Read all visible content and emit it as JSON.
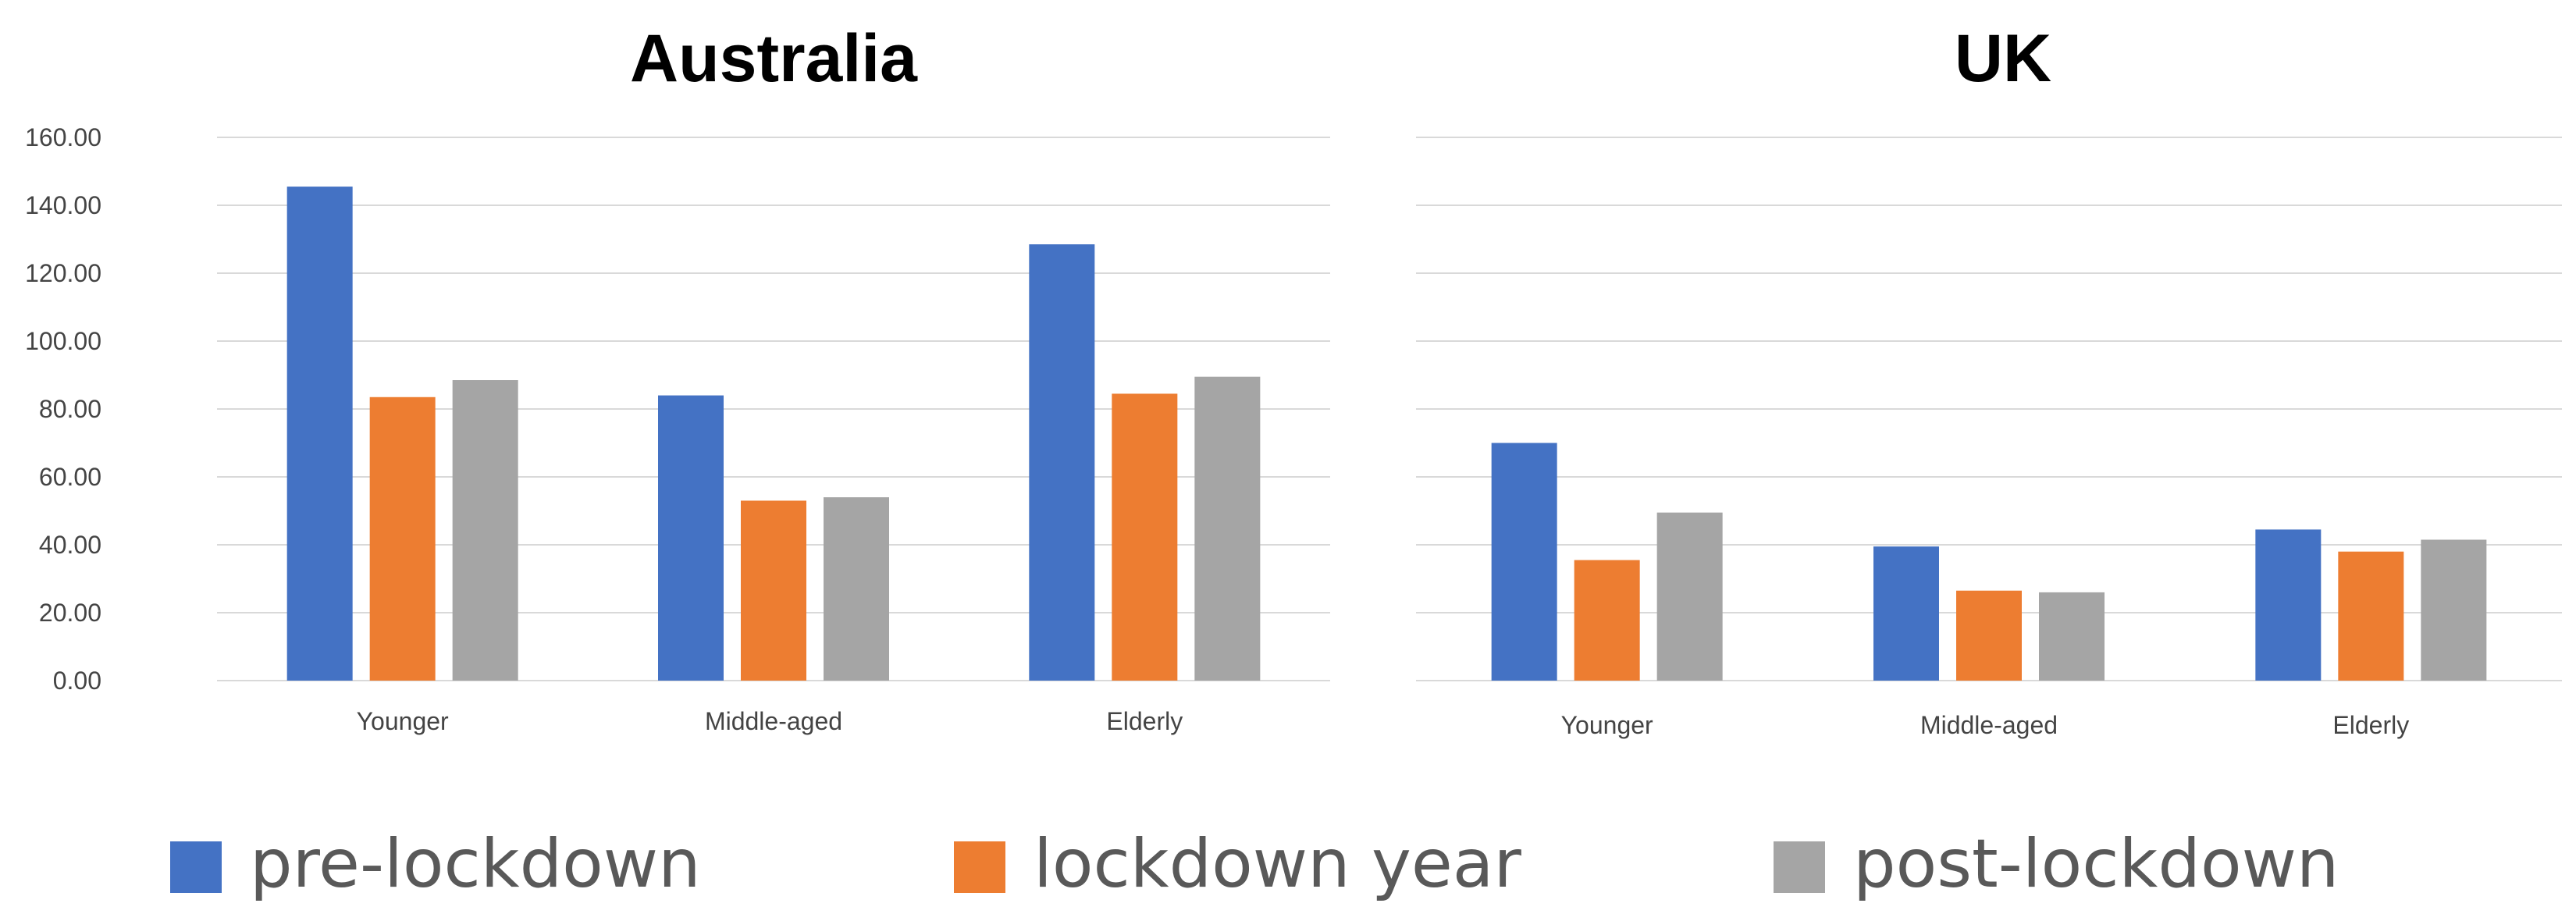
{
  "chart_data": [
    {
      "type": "bar",
      "title": "Australia",
      "categories": [
        "Younger",
        "Middle-aged",
        "Elderly"
      ],
      "series": [
        {
          "name": "pre-lockdown",
          "color": "#4472C4",
          "values": [
            145.5,
            84.0,
            128.5
          ]
        },
        {
          "name": "lockdown year",
          "color": "#ED7D31",
          "values": [
            83.5,
            53.0,
            84.5
          ]
        },
        {
          "name": "post-lockdown",
          "color": "#A5A5A5",
          "values": [
            88.5,
            54.0,
            89.5
          ]
        }
      ],
      "ylim": [
        0,
        160
      ],
      "yticks": [
        "0.00",
        "20.00",
        "40.00",
        "60.00",
        "80.00",
        "100.00",
        "120.00",
        "140.00",
        "160.00"
      ],
      "grid": true
    },
    {
      "type": "bar",
      "title": "UK",
      "categories": [
        "Younger",
        "Middle-aged",
        "Elderly"
      ],
      "series": [
        {
          "name": "pre-lockdown",
          "color": "#4472C4",
          "values": [
            70.0,
            39.5,
            44.5
          ]
        },
        {
          "name": "lockdown year",
          "color": "#ED7D31",
          "values": [
            35.5,
            26.5,
            38.0
          ]
        },
        {
          "name": "post-lockdown",
          "color": "#A5A5A5",
          "values": [
            49.5,
            26.0,
            41.5
          ]
        }
      ],
      "ylim": [
        0,
        160
      ],
      "grid": true
    }
  ],
  "legend": {
    "position": "bottom",
    "items": [
      {
        "label": "pre-lockdown",
        "color": "#4472C4"
      },
      {
        "label": "lockdown year",
        "color": "#ED7D31"
      },
      {
        "label": "post-lockdown",
        "color": "#A5A5A5"
      }
    ]
  }
}
